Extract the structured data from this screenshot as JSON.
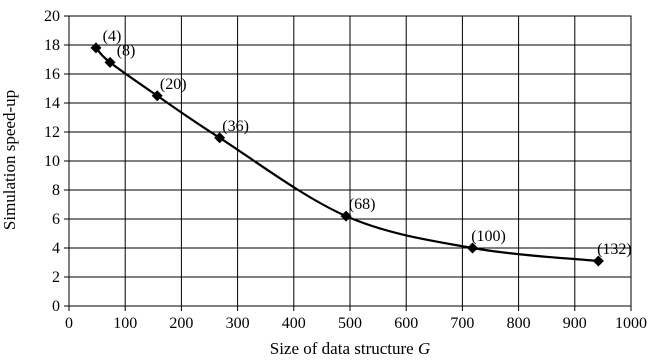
{
  "chart_data": {
    "type": "line",
    "title": "",
    "xlabel": "Size of data structure",
    "xlabel_italic": "G",
    "ylabel": "Simulation speed-up",
    "xlim": [
      0,
      1000
    ],
    "ylim": [
      0,
      20
    ],
    "x_ticks": [
      0,
      100,
      200,
      300,
      400,
      500,
      600,
      700,
      800,
      900,
      1000
    ],
    "y_ticks": [
      0,
      2,
      4,
      6,
      8,
      10,
      12,
      14,
      16,
      18,
      20
    ],
    "grid": true,
    "series": [
      {
        "marker": "diamond",
        "color": "#000000",
        "points": [
          {
            "x": 48,
            "y": 17.8,
            "label": "(4)"
          },
          {
            "x": 73,
            "y": 16.8,
            "label": "(8)"
          },
          {
            "x": 157,
            "y": 14.5,
            "label": "(20)"
          },
          {
            "x": 268,
            "y": 11.6,
            "label": "(36)"
          },
          {
            "x": 493,
            "y": 6.2,
            "label": "(68)"
          },
          {
            "x": 718,
            "y": 4.0,
            "label": "(100)"
          },
          {
            "x": 942,
            "y": 3.1,
            "label": "(132)"
          }
        ]
      }
    ]
  }
}
